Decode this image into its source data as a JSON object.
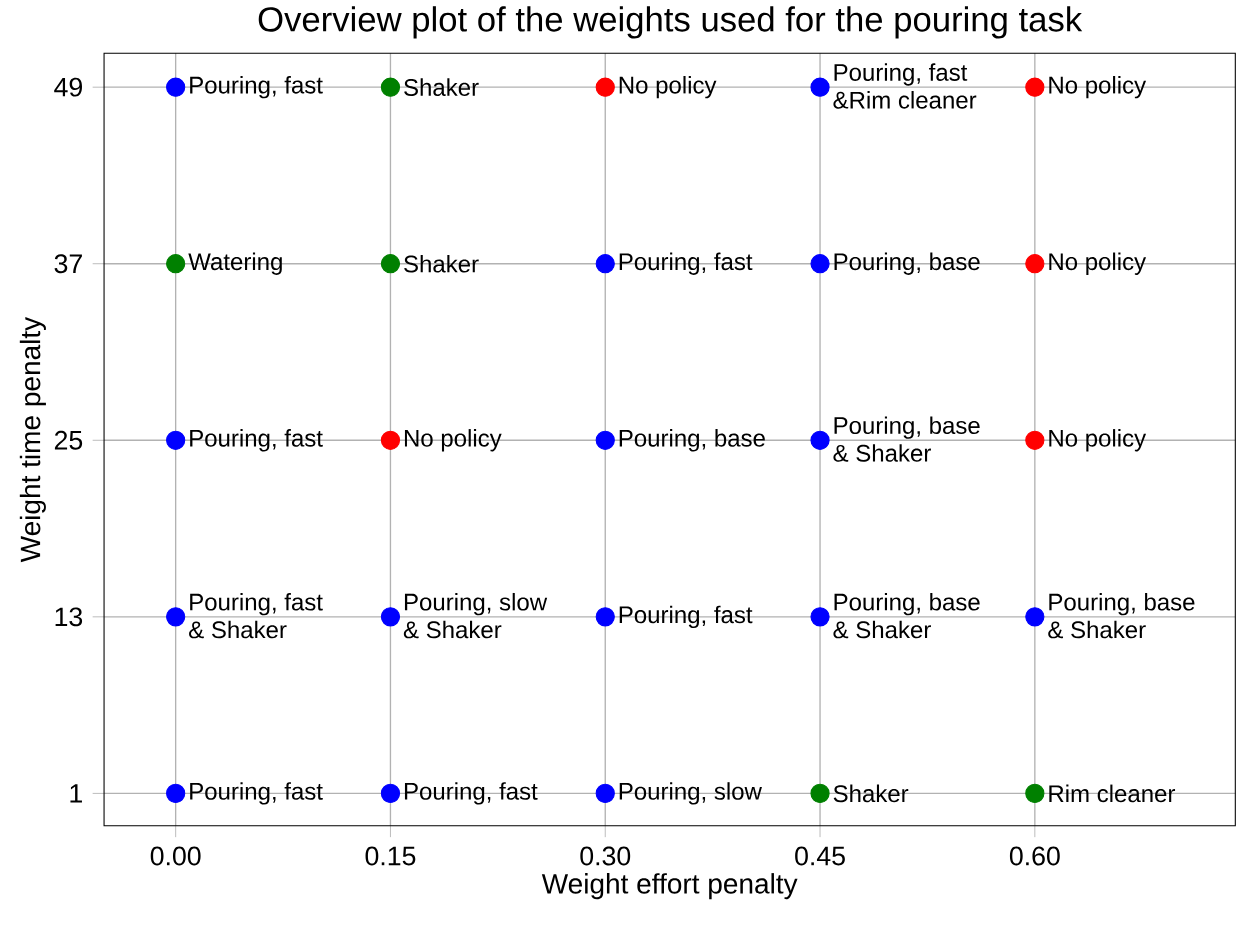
{
  "chart_data": {
    "type": "scatter",
    "title": "Overview plot of the weights used for the pouring task",
    "xlabel": "Weight effort penalty",
    "ylabel": "Weight time penalty",
    "xlim": [
      -0.05,
      0.74
    ],
    "ylim": [
      -1.2,
      51.3
    ],
    "xticks": [
      {
        "value": 0,
        "label": "0.00"
      },
      {
        "value": 0.15,
        "label": "0.15"
      },
      {
        "value": 0.3,
        "label": "0.30"
      },
      {
        "value": 0.45,
        "label": "0.45"
      },
      {
        "value": 0.6,
        "label": "0.60"
      }
    ],
    "yticks": [
      1,
      13,
      25,
      37,
      49
    ],
    "grid": true,
    "marker": "circle",
    "series": [
      {
        "color": "#0000ff",
        "x": [
          0,
          0,
          0,
          0,
          0.15,
          0.15,
          0.3,
          0.3,
          0.3,
          0.3,
          0.45,
          0.45,
          0.45,
          0.45,
          0.6
        ],
        "values": [
          49,
          25,
          13,
          1,
          13,
          1,
          37,
          25,
          13,
          1,
          49,
          37,
          25,
          13,
          13
        ]
      },
      {
        "color": "#008000",
        "x": [
          0,
          0.15,
          0.15,
          0.45,
          0.6
        ],
        "values": [
          37,
          49,
          37,
          1,
          1
        ]
      },
      {
        "color": "#ff0000",
        "x": [
          0.15,
          0.3,
          0.6,
          0.6,
          0.6
        ],
        "values": [
          25,
          49,
          49,
          37,
          25
        ]
      }
    ],
    "annotations": [
      {
        "text": "Pouring, fast",
        "x": 0,
        "y": 49
      },
      {
        "text": "Watering",
        "x": 0,
        "y": 37
      },
      {
        "text": "Pouring, fast",
        "x": 0,
        "y": 25
      },
      {
        "text": "Pouring, fast",
        "x": 0,
        "y": 13
      },
      {
        "text": "& Shaker",
        "x": 0,
        "y": 13
      },
      {
        "text": "Pouring, fast",
        "x": 0,
        "y": 1
      },
      {
        "text": "Shaker",
        "x": 0.15,
        "y": 49
      },
      {
        "text": "Shaker",
        "x": 0.15,
        "y": 37
      },
      {
        "text": "No policy",
        "x": 0.15,
        "y": 25
      },
      {
        "text": "Pouring, slow",
        "x": 0.15,
        "y": 13
      },
      {
        "text": "& Shaker",
        "x": 0.15,
        "y": 13
      },
      {
        "text": "Pouring, fast",
        "x": 0.15,
        "y": 1
      },
      {
        "text": "No policy",
        "x": 0.3,
        "y": 49
      },
      {
        "text": "Pouring, fast",
        "x": 0.3,
        "y": 37
      },
      {
        "text": "Pouring, base",
        "x": 0.3,
        "y": 25
      },
      {
        "text": "Pouring, fast",
        "x": 0.3,
        "y": 13
      },
      {
        "text": "Pouring, slow",
        "x": 0.3,
        "y": 1
      },
      {
        "text": "Pouring, fast",
        "x": 0.45,
        "y": 49
      },
      {
        "text": "&Rim cleaner",
        "x": 0.45,
        "y": 49
      },
      {
        "text": "Pouring, base",
        "x": 0.45,
        "y": 37
      },
      {
        "text": "Pouring, base",
        "x": 0.45,
        "y": 25
      },
      {
        "text": "& Shaker",
        "x": 0.45,
        "y": 25
      },
      {
        "text": "Pouring, base",
        "x": 0.45,
        "y": 13
      },
      {
        "text": "& Shaker",
        "x": 0.45,
        "y": 13
      },
      {
        "text": "Shaker",
        "x": 0.45,
        "y": 1
      },
      {
        "text": "No policy",
        "x": 0.6,
        "y": 49
      },
      {
        "text": "No policy",
        "x": 0.6,
        "y": 37
      },
      {
        "text": "No policy",
        "x": 0.6,
        "y": 25
      },
      {
        "text": "Pouring, base",
        "x": 0.6,
        "y": 13
      },
      {
        "text": "& Shaker",
        "x": 0.6,
        "y": 13
      },
      {
        "text": "Rim cleaner",
        "x": 0.6,
        "y": 1
      }
    ]
  }
}
